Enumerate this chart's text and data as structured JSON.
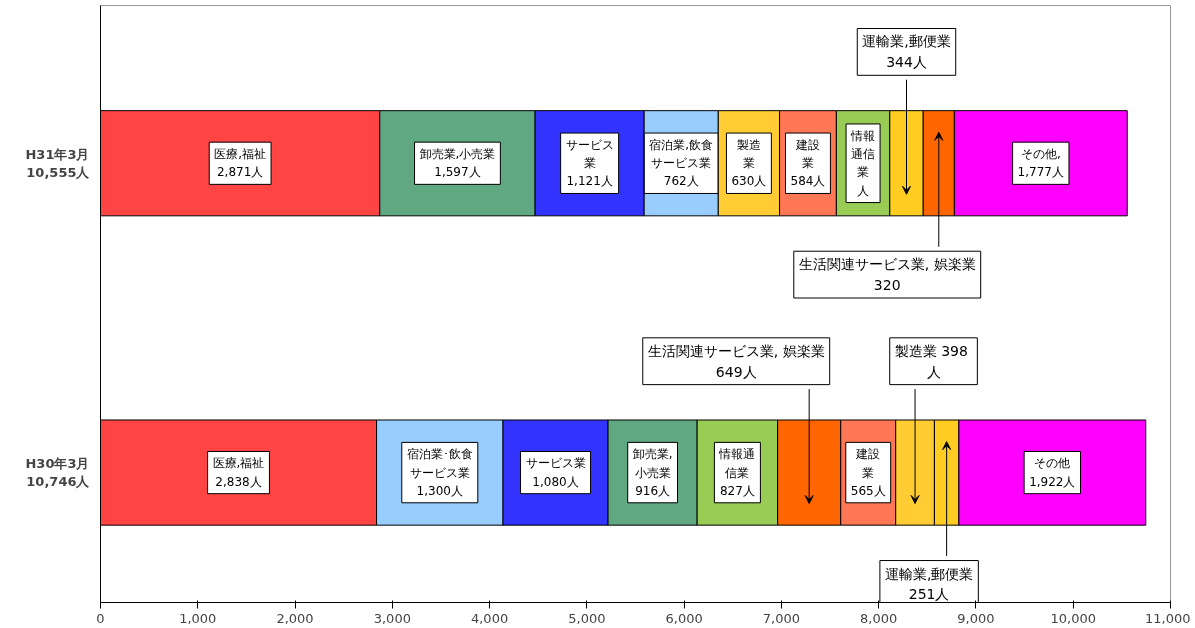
{
  "chart_data": {
    "type": "bar",
    "orientation": "horizontal",
    "stacked": true,
    "categories": [
      "H31年3月\n10,555人",
      "H30年3月\n10,746人"
    ],
    "xlim": [
      0,
      11000
    ],
    "xticks": [
      0,
      {
        "value": 1000,
        "label": "1,000"
      },
      {
        "value": 2000,
        "label": "2,000"
      },
      {
        "value": 3000,
        "label": "3,000"
      },
      {
        "value": 4000,
        "label": "4,000"
      },
      {
        "value": 5000,
        "label": "5,000"
      },
      {
        "value": 6000,
        "label": "6,000"
      },
      {
        "value": 7000,
        "label": "7,000"
      },
      {
        "value": 8000,
        "label": "8,000"
      },
      {
        "value": 9000,
        "label": "9,000"
      },
      {
        "value": 10000,
        "label": "10,000"
      },
      {
        "value": 11000,
        "label": "11,000"
      }
    ],
    "grid": false,
    "series": [
      {
        "colors": [
          "#ff4444",
          "#ff4444"
        ],
        "values": [
          2871,
          2838
        ],
        "value_labels": [
          "医療,福祉\n2,871人",
          "医療,福祉\n2,838人"
        ]
      },
      {
        "colors": [
          "#5fa882",
          "#99ccff"
        ],
        "values": [
          1597,
          1300
        ],
        "value_labels": [
          "卸売業,小売業\n1,597人",
          "宿泊業･飲食サービス業\n1,300人"
        ]
      },
      {
        "colors": [
          "#3333ff",
          "#3333ff"
        ],
        "values": [
          1121,
          1080
        ],
        "value_labels": [
          "サービス業\n1,121人",
          "サービス業\n1,080人"
        ]
      },
      {
        "colors": [
          "#99ccff",
          "#5fa882"
        ],
        "values": [
          762,
          916
        ],
        "value_labels": [
          "宿泊業,飲食サービス業\n762人",
          "卸売業,\n小売業\n916人"
        ]
      },
      {
        "colors": [
          "#ffcc33",
          "#99cc55"
        ],
        "values": [
          630,
          827
        ],
        "value_labels": [
          "製造業\n630人",
          "情報通信業\n827人"
        ]
      },
      {
        "colors": [
          "#ff7755",
          "#ff6600"
        ],
        "values": [
          584,
          649
        ],
        "value_labels": [
          "建設業\n584人",
          "生活関連サービス業, 娯楽業\n649人"
        ]
      },
      {
        "colors": [
          "#99cc55",
          "#ff7755"
        ],
        "values": [
          549,
          565
        ],
        "value_labels": [
          "情報通信業人",
          "建設業\n565人"
        ]
      },
      {
        "colors": [
          "#ffcc22",
          "#ffcc33"
        ],
        "values": [
          344,
          398
        ],
        "value_labels": [
          "運輸業,郵便業\n344人",
          "製造業  398\n人"
        ]
      },
      {
        "colors": [
          "#ff6600",
          "#ffcc22"
        ],
        "values": [
          320,
          251
        ],
        "value_labels": [
          "生活関連サービス業, 娯楽業\n320",
          "運輸業,郵便業\n251人"
        ]
      },
      {
        "colors": [
          "#ff00ff",
          "#ff00ff"
        ],
        "values": [
          1777,
          1922
        ],
        "value_labels": [
          "その他,\n1,777人",
          "その他\n1,922人"
        ]
      }
    ]
  }
}
